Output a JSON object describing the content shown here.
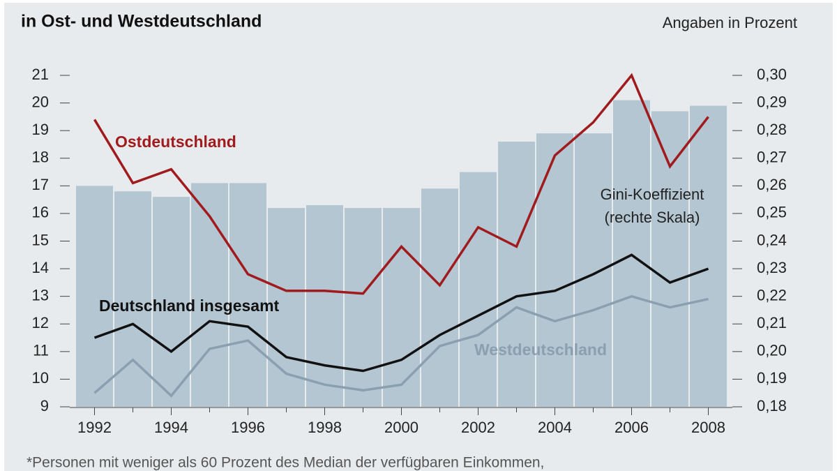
{
  "chart_data": {
    "type": "combo",
    "title": "in Ost- und Westdeutschland",
    "subtitle": "Angaben in Prozent",
    "footnote": "*Personen mit weniger als 60 Prozent des Median der verfügbaren Einkommen,",
    "categories": [
      "1992",
      null,
      "1994",
      null,
      "1996",
      null,
      "1998",
      null,
      "2000",
      null,
      "2002",
      null,
      "2004",
      null,
      "2006",
      null,
      "2008"
    ],
    "ylim": [
      9,
      21
    ],
    "yticks": [
      9,
      10,
      11,
      12,
      13,
      14,
      15,
      16,
      17,
      18,
      19,
      20,
      21
    ],
    "y2lim": [
      0.18,
      0.3
    ],
    "y2ticks": [
      {
        "value": 0.18,
        "label": "0,18"
      },
      {
        "value": 0.19,
        "label": "0,19"
      },
      {
        "value": 0.2,
        "label": "0,20"
      },
      {
        "value": 0.21,
        "label": "0,21"
      },
      {
        "value": 0.22,
        "label": "0,22"
      },
      {
        "value": 0.23,
        "label": "0,23"
      },
      {
        "value": 0.24,
        "label": "0,24"
      },
      {
        "value": 0.25,
        "label": "0,25"
      },
      {
        "value": 0.26,
        "label": "0,26"
      },
      {
        "value": 0.27,
        "label": "0,27"
      },
      {
        "value": 0.28,
        "label": "0,28"
      },
      {
        "value": 0.29,
        "label": "0,29"
      },
      {
        "value": 0.3,
        "label": "0,30"
      }
    ],
    "series": [
      {
        "name": "Gini-Koeffizient (rechte Skala)",
        "type": "bar",
        "axis": "y2",
        "color": "#b4c6d2",
        "values": [
          0.26,
          0.258,
          0.256,
          0.261,
          0.261,
          0.252,
          0.253,
          0.252,
          0.252,
          0.259,
          0.265,
          0.276,
          0.279,
          0.279,
          0.291,
          0.287,
          0.289
        ]
      },
      {
        "name": "Westdeutschland",
        "type": "line",
        "color": "#8aa0b1",
        "values": [
          9.5,
          10.7,
          9.4,
          11.1,
          11.4,
          10.2,
          9.8,
          9.6,
          9.8,
          11.2,
          11.6,
          12.6,
          12.1,
          12.5,
          13.0,
          12.6,
          12.9
        ]
      },
      {
        "name": "Deutschland insgesamt",
        "type": "line",
        "color": "#111111",
        "values": [
          11.5,
          12.0,
          11.0,
          12.1,
          11.9,
          10.8,
          10.5,
          10.3,
          10.7,
          11.6,
          12.3,
          13.0,
          13.2,
          13.8,
          14.5,
          13.5,
          14.0
        ]
      },
      {
        "name": "Ostdeutschland",
        "type": "line",
        "color": "#a01b1d",
        "values": [
          19.4,
          17.1,
          17.6,
          15.9,
          13.8,
          13.2,
          13.2,
          13.1,
          14.8,
          13.4,
          15.5,
          14.8,
          18.1,
          19.3,
          21.0,
          17.7,
          19.5
        ]
      }
    ]
  }
}
